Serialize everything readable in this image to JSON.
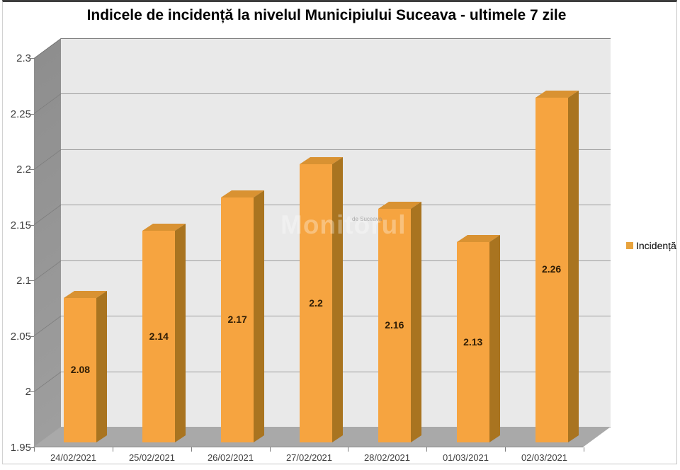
{
  "title": "Indicele de incidență la nivelul Municipiului Suceava - ultimele 7 zile",
  "legend": {
    "label": "Incidență"
  },
  "watermark": {
    "main": "Monitorul",
    "sub": "de Suceava"
  },
  "chart_data": {
    "type": "bar",
    "style": "3d-column",
    "title": "Indicele de incidență la nivelul Municipiului Suceava - ultimele 7 zile",
    "categories": [
      "24/02/2021",
      "25/02/2021",
      "26/02/2021",
      "27/02/2021",
      "28/02/2021",
      "01/03/2021",
      "02/03/2021"
    ],
    "series": [
      {
        "name": "Incidență",
        "values": [
          2.08,
          2.14,
          2.17,
          2.2,
          2.16,
          2.13,
          2.26
        ]
      }
    ],
    "data_labels": [
      "2.08",
      "2.14",
      "2.17",
      "2.2",
      "2.16",
      "2.13",
      "2.26"
    ],
    "xlabel": "",
    "ylabel": "",
    "ylim": [
      1.95,
      2.3
    ],
    "ytick_step": 0.05,
    "yticks": [
      "2.3",
      "2.25",
      "2.2",
      "2.15",
      "2.1",
      "2.05",
      "2",
      "1.95"
    ],
    "grid": true,
    "legend_position": "right",
    "colors": {
      "bar_front": "#F6A440",
      "bar_side": "#A97420",
      "bar_top": "#D99232",
      "back_wall": "#E9E9E9",
      "back_wall_gridline": "#9C9C9C",
      "back_wall_top_edge": "#7F7F7F",
      "side_wall_gridline": "#7D7D7D",
      "side_wall_top_edge": "#6E6E6E",
      "floor": "#A9A9A9",
      "axis_text": "#3F3F3F",
      "data_label_text": "#2E1C05",
      "legend_swatch": "#E8A33D"
    }
  }
}
